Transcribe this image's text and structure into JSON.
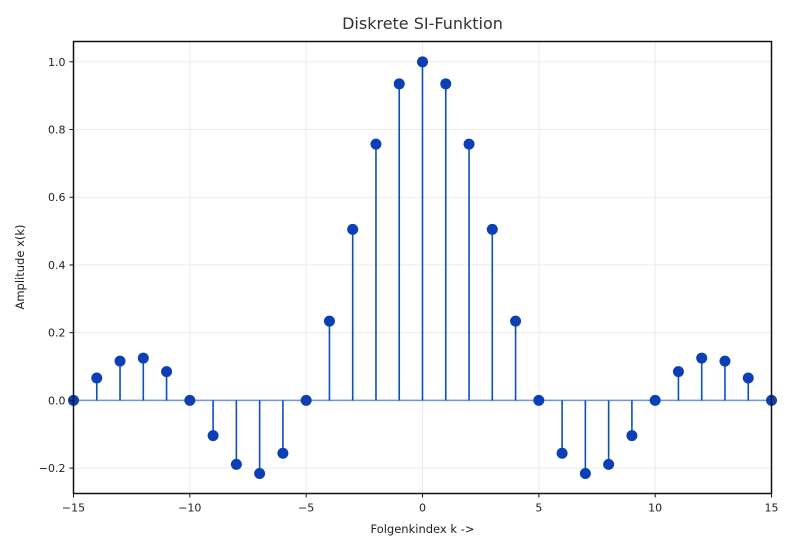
{
  "chart_data": {
    "type": "stem",
    "title": "Diskrete SI-Funktion",
    "xlabel": "Folgenkindex k ->",
    "ylabel": "Amplitude x(k)",
    "xlim": [
      -15,
      15
    ],
    "ylim": [
      -0.275,
      1.06
    ],
    "grid": true,
    "x": [
      -15,
      -14,
      -13,
      -12,
      -11,
      -10,
      -9,
      -8,
      -7,
      -6,
      -5,
      -4,
      -3,
      -2,
      -1,
      0,
      1,
      2,
      3,
      4,
      5,
      6,
      7,
      8,
      9,
      10,
      11,
      12,
      13,
      14,
      15
    ],
    "y": [
      0,
      0.066,
      0.116,
      0.125,
      0.085,
      0,
      -0.104,
      -0.189,
      -0.216,
      -0.156,
      0,
      0.234,
      0.505,
      0.757,
      0.935,
      1.0,
      0.935,
      0.757,
      0.505,
      0.234,
      0,
      -0.156,
      -0.216,
      -0.189,
      -0.104,
      0,
      0.085,
      0.125,
      0.116,
      0.066,
      0
    ],
    "xticks": [
      -15,
      -10,
      -5,
      0,
      5,
      10,
      15
    ],
    "xtick_labels": [
      "−15",
      "−10",
      "−5",
      "0",
      "5",
      "10",
      "15"
    ],
    "yticks": [
      -0.2,
      0.0,
      0.2,
      0.4,
      0.6,
      0.8,
      1.0
    ],
    "ytick_labels": [
      "−0.2",
      "0.0",
      "0.2",
      "0.4",
      "0.6",
      "0.8",
      "1.0"
    ],
    "colors": {
      "marker": "#0a3fb5",
      "stem": "#0a52b0",
      "baseline": "#6a98d8"
    }
  }
}
